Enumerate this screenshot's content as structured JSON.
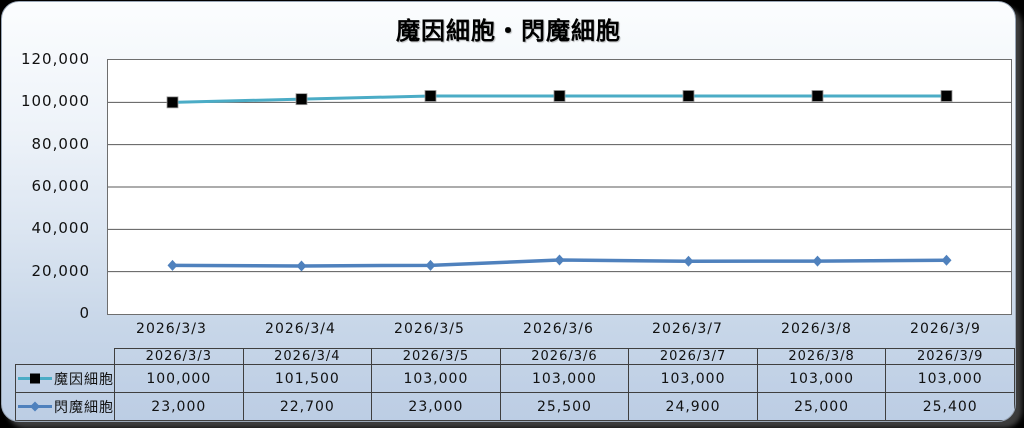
{
  "chart_data": {
    "type": "line",
    "title": "魔因細胞・閃魔細胞",
    "categories": [
      "2026/3/3",
      "2026/3/4",
      "2026/3/5",
      "2026/3/6",
      "2026/3/7",
      "2026/3/8",
      "2026/3/9"
    ],
    "series": [
      {
        "name": "魔因細胞",
        "values": [
          100000,
          101500,
          103000,
          103000,
          103000,
          103000,
          103000
        ],
        "color": "#4BACC6",
        "marker": "square",
        "marker_color": "#000000"
      },
      {
        "name": "閃魔細胞",
        "values": [
          23000,
          22700,
          23000,
          25500,
          24900,
          25000,
          25400
        ],
        "color": "#4F81BD",
        "marker": "diamond",
        "marker_color": "#4F81BD"
      }
    ],
    "ylim": [
      0,
      120000
    ],
    "ytick_step": 20000,
    "yticks": [
      {
        "value": 0,
        "label": "0"
      },
      {
        "value": 20000,
        "label": "20,000"
      },
      {
        "value": 40000,
        "label": "40,000"
      },
      {
        "value": 60000,
        "label": "60,000"
      },
      {
        "value": 80000,
        "label": "80,000"
      },
      {
        "value": 100000,
        "label": "100,000"
      },
      {
        "value": 120000,
        "label": "120,000"
      }
    ],
    "grid": "horizontal",
    "gridline_color": "#5a5a5a",
    "plot_bg": "#ffffff",
    "legend_position": "table-left"
  },
  "table": {
    "header": [
      "2026/3/3",
      "2026/3/4",
      "2026/3/5",
      "2026/3/6",
      "2026/3/7",
      "2026/3/8",
      "2026/3/9"
    ],
    "rows": [
      {
        "label": "魔因細胞",
        "values": [
          "100,000",
          "101,500",
          "103,000",
          "103,000",
          "103,000",
          "103,000",
          "103,000"
        ]
      },
      {
        "label": "閃魔細胞",
        "values": [
          "23,000",
          "22,700",
          "23,000",
          "25,500",
          "24,900",
          "25,000",
          "25,400"
        ]
      }
    ]
  },
  "colors": {
    "accent_teal": "#4BACC6",
    "accent_blue": "#4F81BD",
    "marker_black": "#000000",
    "grid": "#5a5a5a",
    "text": "#111111",
    "bg_top": "#fbfdfe",
    "bg_bottom": "#bccde4"
  }
}
